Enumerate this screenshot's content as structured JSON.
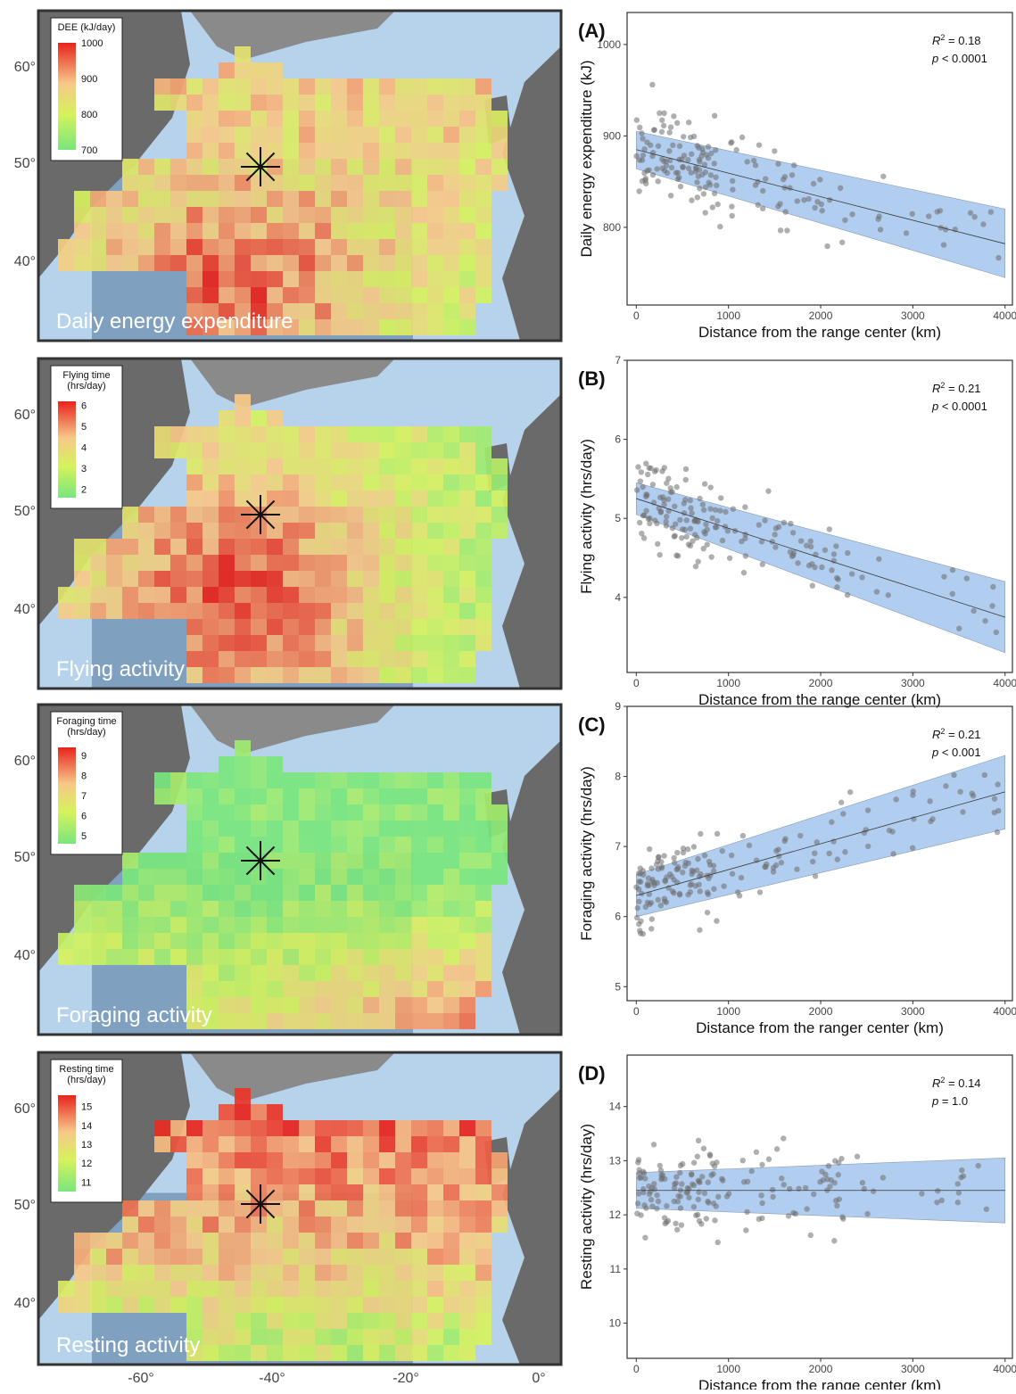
{
  "figure": {
    "maps": [
      {
        "name": "Daily energy expenditure",
        "legend_title": [
          "DEE (kJ/day)"
        ],
        "legend_ticks": [
          "1000",
          "900",
          "800",
          "700"
        ],
        "vmin": 700,
        "vmax": 1000
      },
      {
        "name": "Flying activity",
        "legend_title": [
          "Flying time",
          "(hrs/day)"
        ],
        "legend_ticks": [
          "6",
          "5",
          "4",
          "3",
          "2"
        ],
        "vmin": 1.6,
        "vmax": 6.2
      },
      {
        "name": "Foraging activity",
        "legend_title": [
          "Foraging time",
          "(hrs/day)"
        ],
        "legend_ticks": [
          "9",
          "8",
          "7",
          "6",
          "5"
        ],
        "vmin": 4.6,
        "vmax": 9.4
      },
      {
        "name": "Resting activity",
        "legend_title": [
          "Resting time",
          "(hrs/day)"
        ],
        "legend_ticks": [
          "15",
          "14",
          "13",
          "12",
          "11"
        ],
        "vmin": 10.5,
        "vmax": 15.6
      }
    ],
    "lat_labels": [
      "60°",
      "50°",
      "40°"
    ],
    "lon_labels": [
      "-60°",
      "-40°",
      "-20°",
      "0°"
    ],
    "colors": {
      "low": "#78e67d",
      "mid_low": "#d6f25c",
      "mid": "#f7c889",
      "high": "#e8231c",
      "ci_band": "#a9c8ee",
      "points": "#6e6e6e",
      "ocean": "#b7d3ec",
      "land": "#6a6a6a"
    }
  },
  "chart_data": [
    {
      "type": "scatter",
      "panel": "(A)",
      "xlabel": "Distance from the range center (km)",
      "ylabel": "Daily energy expenditure (kJ)",
      "xlim": [
        -100,
        4080
      ],
      "ylim": [
        715,
        1035
      ],
      "xticks": [
        0,
        1000,
        2000,
        3000,
        4000
      ],
      "yticks": [
        800,
        900,
        1000
      ],
      "annotation": {
        "r2": "= 0.18",
        "p": "< 0.0001"
      },
      "fit": {
        "y0": 885,
        "y1": 782,
        "ci0": [
          864,
          905
        ],
        "ci1": [
          745,
          820
        ]
      },
      "seed": 11,
      "base": [
        885,
        -0.026
      ],
      "noise": 58
    },
    {
      "type": "scatter",
      "panel": "(B)",
      "xlabel": "Distance from the range center (km)",
      "ylabel": "Flying activity (hrs/day)",
      "xlim": [
        -100,
        4080
      ],
      "ylim": [
        3.05,
        7.0
      ],
      "xticks": [
        0,
        1000,
        2000,
        3000,
        4000
      ],
      "yticks": [
        4,
        5,
        6,
        7
      ],
      "annotation": {
        "r2": "= 0.21",
        "p": "< 0.0001"
      },
      "fit": {
        "y0": 5.25,
        "y1": 3.75,
        "ci0": [
          5.05,
          5.45
        ],
        "ci1": [
          3.3,
          4.2
        ]
      },
      "seed": 23,
      "base": [
        5.25,
        -0.000375
      ],
      "noise": 0.62
    },
    {
      "type": "scatter",
      "panel": "(C)",
      "xlabel": "Distance from the ranger center (km)",
      "ylabel": "Foraging activity (hrs/day)",
      "xlim": [
        -100,
        4080
      ],
      "ylim": [
        4.8,
        9.0
      ],
      "xticks": [
        0,
        1000,
        2000,
        3000,
        4000
      ],
      "yticks": [
        5,
        6,
        7,
        8,
        9
      ],
      "annotation": {
        "r2": "= 0.21",
        "p": "< 0.001"
      },
      "fit": {
        "y0": 6.3,
        "y1": 7.78,
        "ci0": [
          6.0,
          6.6
        ],
        "ci1": [
          7.25,
          8.3
        ]
      },
      "seed": 37,
      "base": [
        6.3,
        0.00037
      ],
      "noise": 0.72
    },
    {
      "type": "scatter",
      "panel": "(D)",
      "xlabel": "Distance from the range center (km)",
      "ylabel": "Resting activity (hrs/day)",
      "xlim": [
        -100,
        4080
      ],
      "ylim": [
        9.35,
        14.95
      ],
      "xticks": [
        0,
        1000,
        2000,
        3000,
        4000
      ],
      "yticks": [
        10,
        11,
        12,
        13,
        14
      ],
      "annotation": {
        "r2": "= 0.14",
        "p": "= 1.0"
      },
      "fit": {
        "y0": 12.45,
        "y1": 12.45,
        "ci0": [
          12.12,
          12.78
        ],
        "ci1": [
          11.85,
          13.05
        ]
      },
      "seed": 51,
      "base": [
        12.45,
        0.0
      ],
      "noise": 0.85
    }
  ]
}
